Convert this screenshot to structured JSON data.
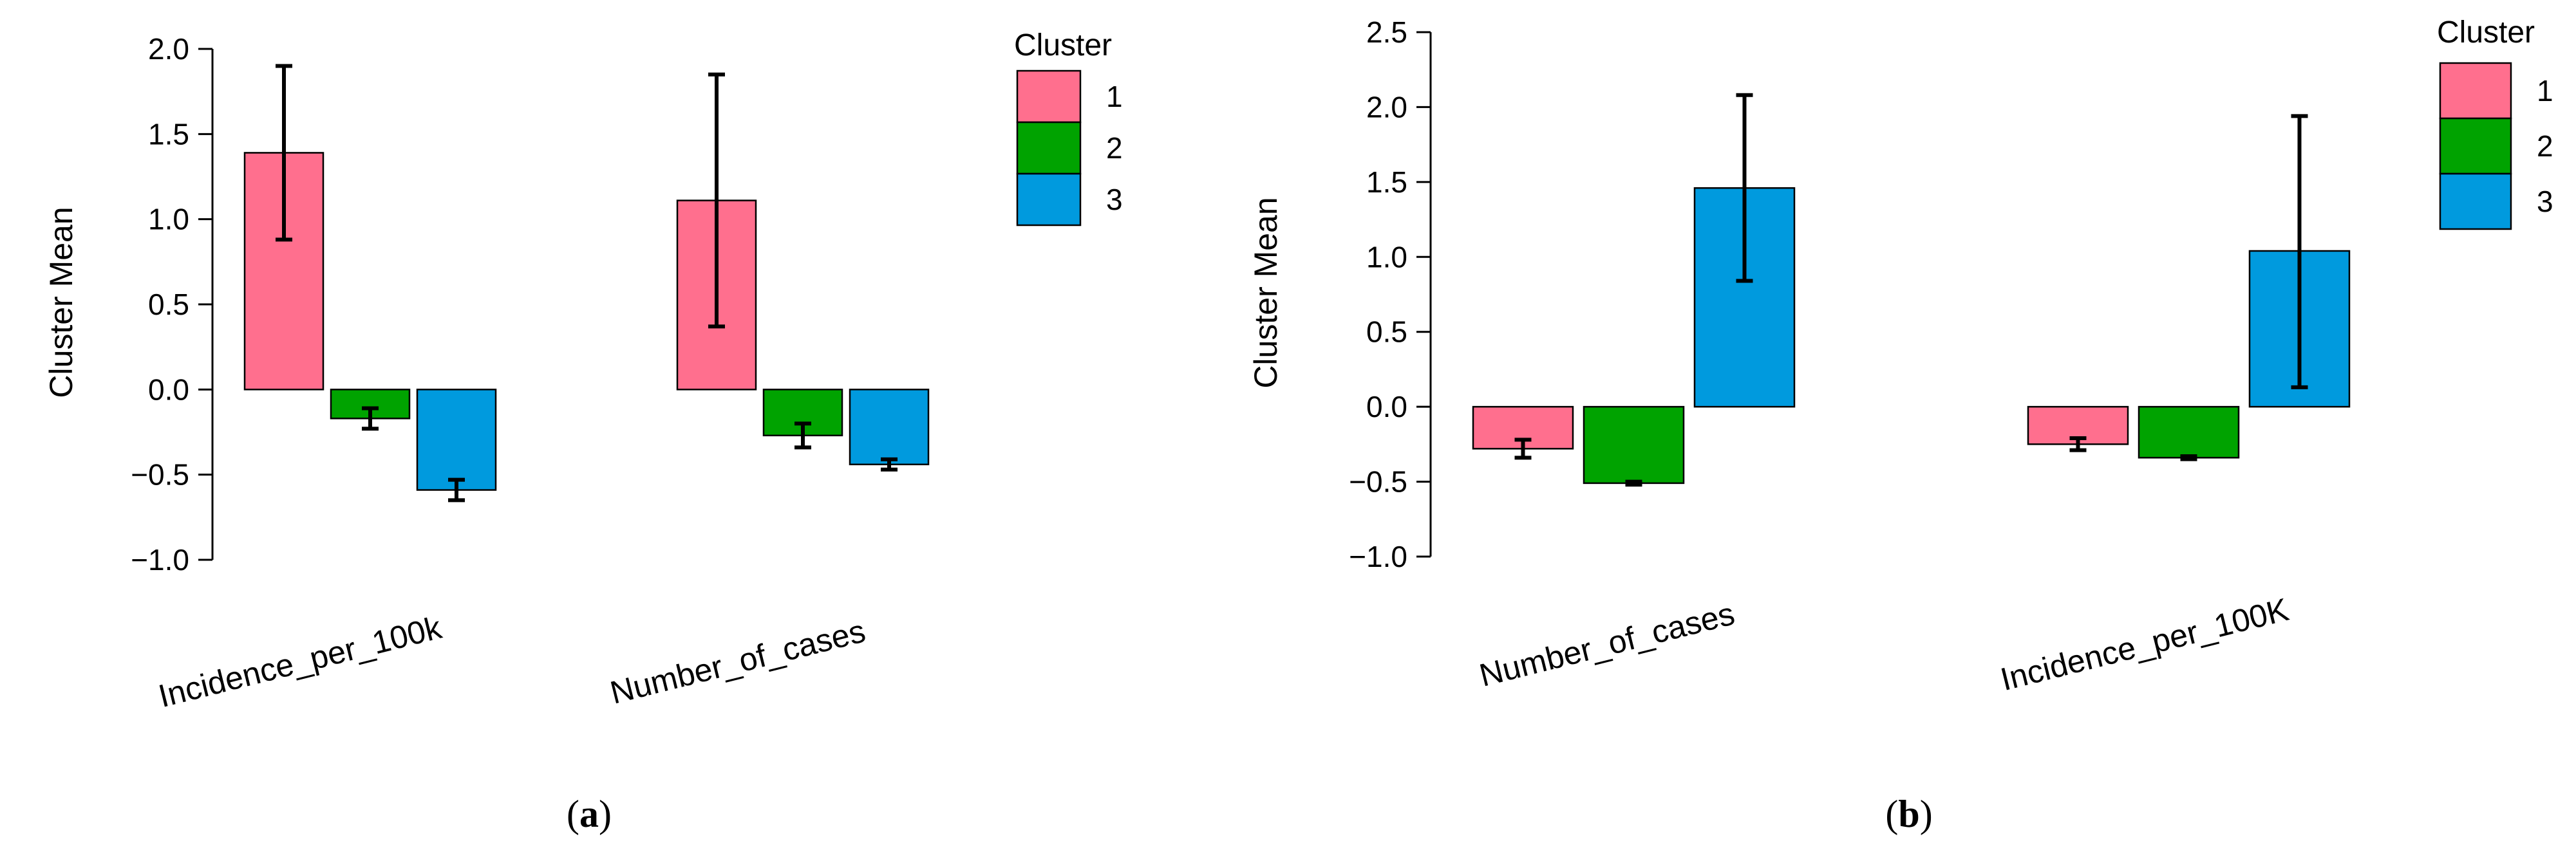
{
  "colors": {
    "cluster1": "#FF6F8E",
    "cluster2": "#00A300",
    "cluster3": "#009ADE",
    "axis": "#000000"
  },
  "chart_data": [
    {
      "type": "bar",
      "caption_letter": "a",
      "ylabel": "Cluster Mean",
      "ylim": [
        -1.0,
        2.0
      ],
      "yticks": [
        "−1.0",
        "−0.5",
        "0.0",
        "0.5",
        "1.0",
        "1.5",
        "2.0"
      ],
      "ytick_values": [
        -1.0,
        -0.5,
        0.0,
        0.5,
        1.0,
        1.5,
        2.0
      ],
      "categories": [
        "Incidence_per_100k",
        "Number_of_cases"
      ],
      "legend": {
        "title": "Cluster",
        "position": "top-right"
      },
      "series": [
        {
          "name": "1",
          "values": [
            1.39,
            1.11
          ],
          "err_low": [
            0.88,
            0.37
          ],
          "err_high": [
            1.9,
            1.85
          ]
        },
        {
          "name": "2",
          "values": [
            -0.17,
            -0.27
          ],
          "err_low": [
            -0.23,
            -0.34
          ],
          "err_high": [
            -0.11,
            -0.2
          ]
        },
        {
          "name": "3",
          "values": [
            -0.59,
            -0.44
          ],
          "err_low": [
            -0.65,
            -0.47
          ],
          "err_high": [
            -0.53,
            -0.41
          ]
        }
      ]
    },
    {
      "type": "bar",
      "caption_letter": "b",
      "ylabel": "Cluster Mean",
      "ylim": [
        -1.0,
        2.5
      ],
      "yticks": [
        "−1.0",
        "−0.5",
        "0.0",
        "0.5",
        "1.0",
        "1.5",
        "2.0",
        "2.5"
      ],
      "ytick_values": [
        -1.0,
        -0.5,
        0.0,
        0.5,
        1.0,
        1.5,
        2.0,
        2.5
      ],
      "categories": [
        "Number_of_cases",
        "Incidence_per_100K"
      ],
      "legend": {
        "title": "Cluster",
        "position": "top-right"
      },
      "series": [
        {
          "name": "1",
          "values": [
            -0.28,
            -0.25
          ],
          "err_low": [
            -0.34,
            -0.29
          ],
          "err_high": [
            -0.22,
            -0.21
          ]
        },
        {
          "name": "2",
          "values": [
            -0.51,
            -0.34
          ],
          "err_low": [
            -0.52,
            -0.35
          ],
          "err_high": [
            -0.5,
            -0.33
          ]
        },
        {
          "name": "3",
          "values": [
            1.46,
            1.04
          ],
          "err_low": [
            0.84,
            0.13
          ],
          "err_high": [
            2.08,
            1.94
          ]
        }
      ]
    }
  ]
}
